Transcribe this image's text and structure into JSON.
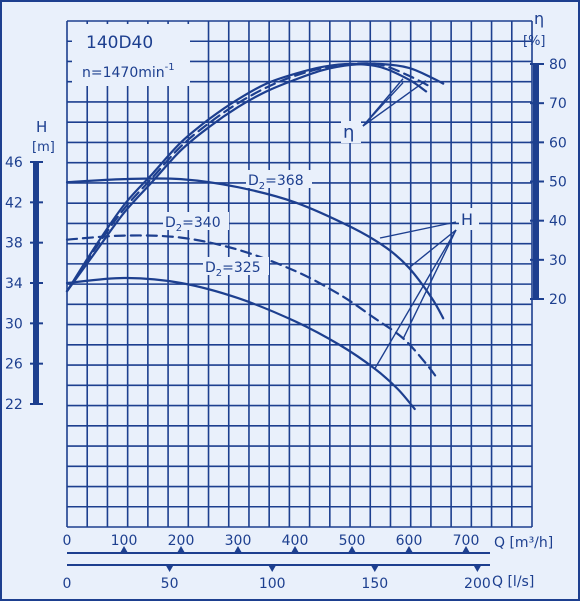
{
  "chart_data": {
    "type": "line",
    "title": "140D40",
    "speed": "n=1470min",
    "speed_sup": "-1",
    "x_primary": {
      "label": "Q [m³/h]",
      "range": [
        0,
        750
      ],
      "ticks": [
        0,
        100,
        200,
        300,
        400,
        500,
        600,
        700
      ]
    },
    "x_secondary": {
      "label": "Q [l/s]",
      "ticks": [
        0,
        50,
        100,
        150,
        200
      ]
    },
    "y_left": {
      "symbol": "H",
      "unit": "[m]",
      "range": [
        22,
        46
      ],
      "ticks": [
        22,
        26,
        30,
        34,
        38,
        42,
        46
      ]
    },
    "y_right": {
      "symbol": "η",
      "unit": "[%]",
      "range": [
        20,
        80
      ],
      "ticks": [
        20,
        30,
        40,
        50,
        60,
        70,
        80
      ]
    },
    "grid": true,
    "head_series": [
      {
        "name": "D2=368",
        "label_main": "D",
        "label_sub": "2",
        "label_rest": "=368",
        "x": [
          0,
          100,
          200,
          300,
          400,
          500,
          560,
          600,
          640,
          660
        ],
        "y": [
          44.0,
          44.3,
          44.3,
          43.5,
          42.0,
          39.5,
          37.5,
          35.5,
          32.5,
          30.5
        ]
      },
      {
        "name": "D2=340",
        "label_main": "D",
        "label_sub": "2",
        "label_rest": "=340",
        "x": [
          0,
          100,
          200,
          300,
          400,
          480,
          540,
          590,
          630,
          650
        ],
        "y": [
          38.3,
          38.7,
          38.5,
          37.3,
          35.2,
          32.8,
          30.5,
          28.5,
          26.0,
          24.5
        ]
      },
      {
        "name": "D2=325",
        "label_main": "D",
        "label_sub": "2",
        "label_rest": "=325",
        "x": [
          0,
          100,
          200,
          300,
          400,
          480,
          540,
          580,
          610
        ],
        "y": [
          34.0,
          34.5,
          34.0,
          32.5,
          30.2,
          27.8,
          25.5,
          23.5,
          21.5
        ]
      }
    ],
    "efficiency_series": [
      {
        "name": "η D2=368",
        "x": [
          0,
          50,
          100,
          150,
          200,
          250,
          300,
          350,
          400,
          450,
          500,
          550,
          600,
          640,
          660
        ],
        "y": [
          22,
          32,
          42,
          50,
          58,
          64,
          69,
          73,
          76,
          78.5,
          79.8,
          80,
          79,
          76.5,
          75
        ]
      },
      {
        "name": "η D2=340",
        "x": [
          0,
          50,
          100,
          150,
          200,
          250,
          300,
          350,
          400,
          450,
          500,
          550,
          600,
          640
        ],
        "y": [
          22,
          33,
          43,
          51,
          59,
          65,
          70,
          74,
          77,
          79,
          80,
          79.8,
          77,
          74
        ]
      },
      {
        "name": "η D2=325",
        "x": [
          0,
          50,
          100,
          150,
          200,
          250,
          300,
          350,
          400,
          450,
          500,
          550,
          600,
          630
        ],
        "y": [
          22,
          33.5,
          44,
          52,
          60,
          66,
          71,
          75,
          77.5,
          79.3,
          80,
          79.2,
          76,
          73
        ]
      }
    ],
    "annotations": {
      "eta_label": "η",
      "head_label": "H"
    }
  }
}
